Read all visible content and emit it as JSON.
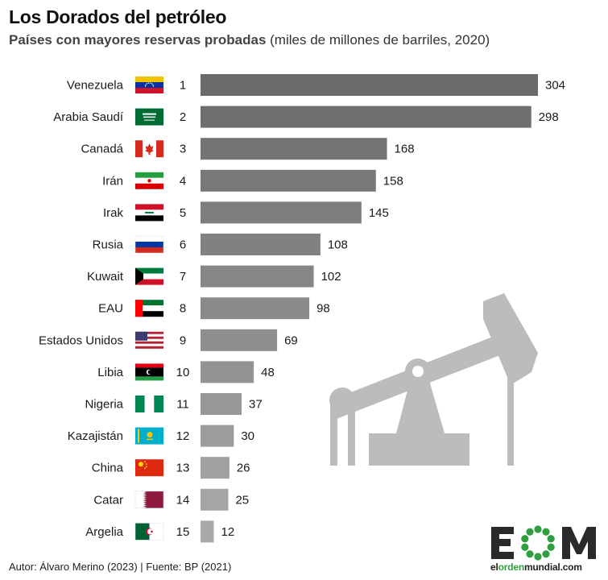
{
  "title": "Los Dorados del petróleo",
  "subtitle_main": "Países con mayores reservas probadas",
  "subtitle_units": "(miles de millones de barriles, 2020)",
  "footer": "Autor: Álvaro Merino (2023) | Fuente: BP (2021)",
  "logo": {
    "mark": "EOM",
    "text_a": "el",
    "text_b": "orden",
    "text_c": "mundial",
    "text_d": ".com"
  },
  "colors": {
    "bar_top": "#6b6b6b",
    "bar_bottom": "#a9a9a9",
    "pump": "#bcbcbc",
    "logo_green": "#2e9e3f"
  },
  "chart_data": {
    "type": "bar",
    "orientation": "horizontal",
    "categories": [
      "Venezuela",
      "Arabia Saudí",
      "Canadá",
      "Irán",
      "Irak",
      "Rusia",
      "Kuwait",
      "EAU",
      "Estados Unidos",
      "Libia",
      "Nigeria",
      "Kazajistán",
      "China",
      "Catar",
      "Argelia"
    ],
    "ranks": [
      "1",
      "2",
      "3",
      "4",
      "5",
      "6",
      "7",
      "8",
      "9",
      "10",
      "11",
      "12",
      "13",
      "14",
      "15"
    ],
    "flags": [
      "venezuela",
      "saudi-arabia",
      "canada",
      "iran",
      "iraq",
      "russia",
      "kuwait",
      "uae",
      "usa",
      "libya",
      "nigeria",
      "kazakhstan",
      "china",
      "qatar",
      "algeria"
    ],
    "values": [
      304,
      298,
      168,
      158,
      145,
      108,
      102,
      98,
      69,
      48,
      37,
      30,
      26,
      25,
      12
    ],
    "xlim": [
      0,
      304
    ],
    "grid": false,
    "legend": "none"
  }
}
